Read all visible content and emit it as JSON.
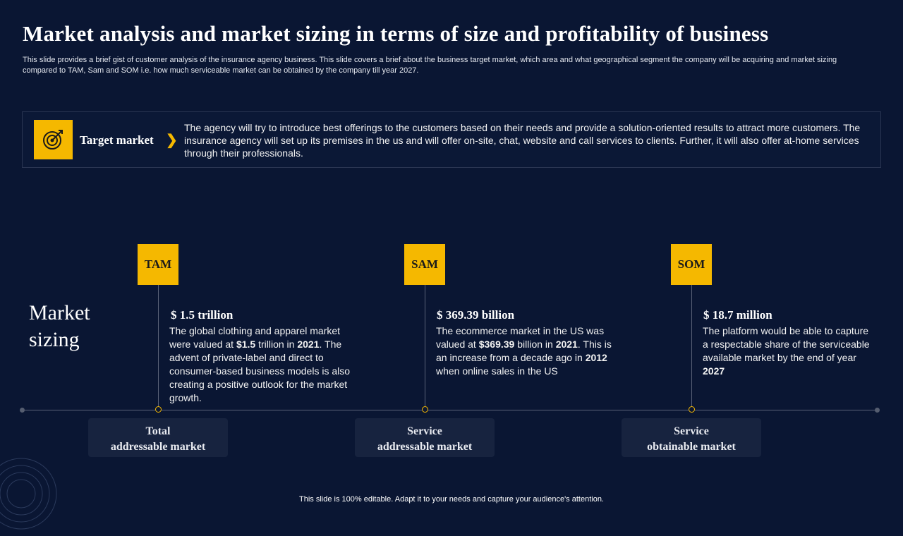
{
  "title": "Market analysis and market sizing in terms of size and profitability of business",
  "subtitle": "This slide provides a brief gist of customer analysis of the insurance agency business. This slide covers a brief about the business target market, which area and what geographical segment the company will be acquiring and market sizing compared to TAM,  Sam and SOM  i.e. how much serviceable market can be obtained by the company till year 2027.",
  "target": {
    "label": "Target market",
    "chevron": "❯",
    "text": "The agency will try to introduce best offerings to the customers based on their needs and provide a solution-oriented results to attract more customers. The insurance agency will set up its premises in the us and will offer on-site, chat, website and call services to clients. Further, it will also offer at-home services through their professionals.",
    "icon": "target-icon"
  },
  "market_sizing_label": [
    "Market",
    "sizing"
  ],
  "segments": [
    {
      "tag": "TAM",
      "value": "$ 1.5 trillion",
      "desc_parts": [
        "The global clothing and apparel market were valued at ",
        "$1.5",
        " trillion in ",
        "2021",
        ". The advent of private-label and direct to consumer-based business models is also creating a positive outlook for the market growth."
      ],
      "bottom": [
        "Total",
        "addressable market"
      ]
    },
    {
      "tag": "SAM",
      "value": "$ 369.39 billion",
      "desc_parts": [
        "The ecommerce market in the US was valued at ",
        "$369.39",
        " billion in ",
        "2021",
        ". This is an increase from a decade ago in ",
        "2012",
        " when online sales in the US"
      ],
      "bottom": [
        "Service",
        "addressable market"
      ]
    },
    {
      "tag": "SOM",
      "value": "$ 18.7 million",
      "desc_parts": [
        "The platform would be able to capture a respectable share of the serviceable available market by the end of year ",
        "2027"
      ],
      "bottom": [
        "Service",
        "obtainable market"
      ]
    }
  ],
  "footer": "This slide is 100% editable. Adapt it to your needs and capture your audience's attention.",
  "colors": {
    "background": "#0a1633",
    "accent": "#f5b800",
    "box": "#17233f"
  }
}
